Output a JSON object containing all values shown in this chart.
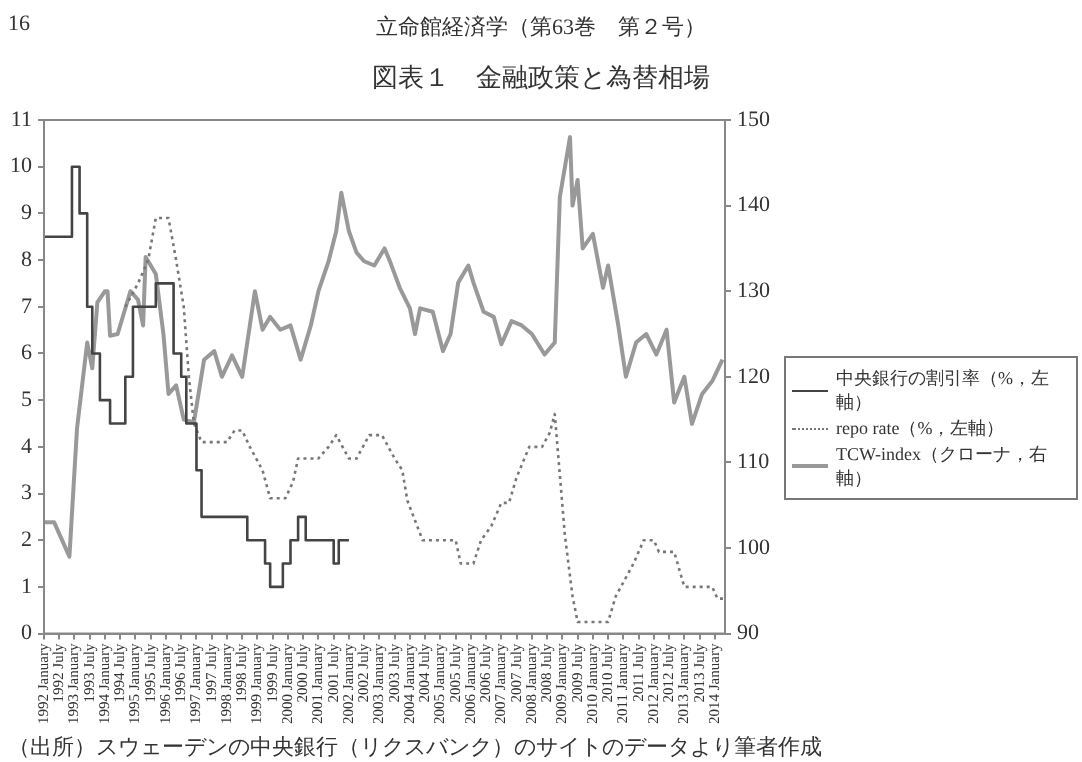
{
  "chart_data": {
    "type": "line",
    "title": "図表１　金融政策と為替相場",
    "annotations": [
      "16",
      "立命館経済学（第63巻　第２号）",
      "（出所）スウェーデンの中央銀行（リクスバンク）のサイトのデータより筆者作成"
    ],
    "xlim": [
      "1992-01",
      "2014-05"
    ],
    "xticks": [
      {
        "value": "1992-01",
        "label": "1992 January"
      },
      {
        "value": "1992-07",
        "label": "1992 July"
      },
      {
        "value": "1993-01",
        "label": "1993 January"
      },
      {
        "value": "1993-07",
        "label": "1993 July"
      },
      {
        "value": "1994-01",
        "label": "1994 January"
      },
      {
        "value": "1994-07",
        "label": "1994 July"
      },
      {
        "value": "1995-01",
        "label": "1995 January"
      },
      {
        "value": "1995-07",
        "label": "1995 July"
      },
      {
        "value": "1996-01",
        "label": "1996 January"
      },
      {
        "value": "1996-07",
        "label": "1996 July"
      },
      {
        "value": "1997-01",
        "label": "1997 January"
      },
      {
        "value": "1997-07",
        "label": "1997 July"
      },
      {
        "value": "1998-01",
        "label": "1998 January"
      },
      {
        "value": "1998-07",
        "label": "1998 July"
      },
      {
        "value": "1999-01",
        "label": "1999 January"
      },
      {
        "value": "1999-07",
        "label": "1999 July"
      },
      {
        "value": "2000-01",
        "label": "2000 January"
      },
      {
        "value": "2000-07",
        "label": "2000 July"
      },
      {
        "value": "2001-01",
        "label": "2001 January"
      },
      {
        "value": "2001-07",
        "label": "2001 July"
      },
      {
        "value": "2002-01",
        "label": "2002 January"
      },
      {
        "value": "2002-07",
        "label": "2002 July"
      },
      {
        "value": "2003-01",
        "label": "2003 January"
      },
      {
        "value": "2003-07",
        "label": "2003 July"
      },
      {
        "value": "2004-01",
        "label": "2004 January"
      },
      {
        "value": "2004-07",
        "label": "2004 July"
      },
      {
        "value": "2005-01",
        "label": "2005 January"
      },
      {
        "value": "2005-07",
        "label": "2005 July"
      },
      {
        "value": "2006-01",
        "label": "2006 January"
      },
      {
        "value": "2006-07",
        "label": "2006 July"
      },
      {
        "value": "2007-01",
        "label": "2007 January"
      },
      {
        "value": "2007-07",
        "label": "2007 July"
      },
      {
        "value": "2008-01",
        "label": "2008 January"
      },
      {
        "value": "2008-07",
        "label": "2008 July"
      },
      {
        "value": "2009-01",
        "label": "2009 January"
      },
      {
        "value": "2009-07",
        "label": "2009 July"
      },
      {
        "value": "2010-01",
        "label": "2010 January"
      },
      {
        "value": "2010-07",
        "label": "2010 July"
      },
      {
        "value": "2011-01",
        "label": "2011 January"
      },
      {
        "value": "2011-07",
        "label": "2011 July"
      },
      {
        "value": "2012-01",
        "label": "2012 January"
      },
      {
        "value": "2012-07",
        "label": "2012 July"
      },
      {
        "value": "2013-01",
        "label": "2013 January"
      },
      {
        "value": "2013-07",
        "label": "2013 July"
      },
      {
        "value": "2014-01",
        "label": "2014 January"
      }
    ],
    "ylim": [
      0,
      11
    ],
    "yticks": [
      0,
      1,
      2,
      3,
      4,
      5,
      6,
      7,
      8,
      9,
      10,
      11
    ],
    "y2lim": [
      90,
      150
    ],
    "y2ticks": [
      90,
      100,
      110,
      120,
      130,
      140,
      150
    ],
    "grid": false,
    "legend": "right",
    "series": [
      {
        "name": "中央銀行の割引率（%，左軸）",
        "type": "step",
        "color": "#444444",
        "line_style": "solid",
        "x": [
          "1992-01",
          "1992-12",
          "1993-03",
          "1993-06",
          "1993-08",
          "1993-11",
          "1994-03",
          "1994-09",
          "1994-12",
          "1995-09",
          "1996-04",
          "1996-07",
          "1996-09",
          "1997-01",
          "1997-03",
          "1998-09",
          "1999-04",
          "1999-06",
          "1999-11",
          "2000-02",
          "2000-05",
          "2000-08",
          "2001-07",
          "2001-09",
          "2002-01"
        ],
        "values": [
          8.5,
          10,
          9,
          7,
          6,
          5,
          4.5,
          5.5,
          7,
          7.5,
          6,
          5.5,
          4.5,
          3.5,
          2.5,
          2,
          1.5,
          1,
          1.5,
          2,
          2.5,
          2,
          1.5,
          2,
          2
        ]
      },
      {
        "name": "repo rate（%，左軸）",
        "type": "line",
        "color": "#777777",
        "line_style": "dotted",
        "x": [
          "1994-09",
          "1995-02",
          "1995-06",
          "1995-09",
          "1996-02",
          "1996-05",
          "1996-08",
          "1996-10",
          "1996-12",
          "1997-03",
          "1998-01",
          "1998-04",
          "1998-07",
          "1998-10",
          "1999-03",
          "1999-06",
          "1999-12",
          "2000-03",
          "2000-05",
          "2001-01",
          "2001-05",
          "2001-08",
          "2002-01",
          "2002-04",
          "2002-09",
          "2003-02",
          "2003-07",
          "2003-10",
          "2003-12",
          "2004-06",
          "2005-07",
          "2005-09",
          "2006-02",
          "2006-05",
          "2006-09",
          "2007-01",
          "2007-04",
          "2007-07",
          "2007-12",
          "2008-05",
          "2008-08",
          "2008-10",
          "2009-02",
          "2009-05",
          "2009-07",
          "2010-07",
          "2010-10",
          "2011-05",
          "2011-09",
          "2012-01",
          "2012-03",
          "2012-09",
          "2013-01",
          "2013-12",
          "2014-02",
          "2014-05"
        ],
        "values": [
          7,
          7.5,
          8,
          8.9,
          8.9,
          8,
          7,
          5.5,
          4.5,
          4.1,
          4.1,
          4.35,
          4.35,
          4,
          3.5,
          2.9,
          2.9,
          3.25,
          3.75,
          3.75,
          4,
          4.25,
          3.75,
          3.75,
          4.25,
          4.25,
          3.75,
          3.5,
          2.85,
          2,
          2,
          1.5,
          1.5,
          2,
          2.3,
          2.8,
          2.8,
          3.35,
          4,
          4,
          4.3,
          4.7,
          2.1,
          0.8,
          0.25,
          0.25,
          0.8,
          1.5,
          2,
          2,
          1.75,
          1.75,
          1,
          1,
          0.75,
          0.75
        ]
      },
      {
        "name": "TCW-index（クローナ，右軸）",
        "type": "line",
        "axis": "y2",
        "color": "#999999",
        "line_style": "solid",
        "x": [
          "1992-01",
          "1992-05",
          "1992-11",
          "1993-02",
          "1993-06",
          "1993-08",
          "1993-10",
          "1994-01",
          "1994-02",
          "1994-03",
          "1994-06",
          "1994-11",
          "1995-02",
          "1995-04",
          "1995-05",
          "1995-09",
          "1995-12",
          "1996-02",
          "1996-05",
          "1996-08",
          "1996-12",
          "1997-04",
          "1997-08",
          "1997-11",
          "1998-03",
          "1998-07",
          "1998-12",
          "1999-03",
          "1999-06",
          "1999-10",
          "2000-02",
          "2000-06",
          "2000-10",
          "2001-01",
          "2001-05",
          "2001-08",
          "2001-10",
          "2002-01",
          "2002-04",
          "2002-07",
          "2002-11",
          "2003-03",
          "2003-05",
          "2003-07",
          "2003-09",
          "2004-01",
          "2004-03",
          "2004-05",
          "2004-10",
          "2005-02",
          "2005-05",
          "2005-08",
          "2005-12",
          "2006-02",
          "2006-06",
          "2006-10",
          "2007-01",
          "2007-05",
          "2007-09",
          "2008-01",
          "2008-06",
          "2008-10",
          "2008-12",
          "2009-04",
          "2009-05",
          "2009-07",
          "2009-09",
          "2010-01",
          "2010-05",
          "2010-07",
          "2010-11",
          "2011-02",
          "2011-06",
          "2011-10",
          "2012-02",
          "2012-06",
          "2012-09",
          "2013-01",
          "2013-04",
          "2013-08",
          "2013-12",
          "2014-04"
        ],
        "values": [
          103,
          103,
          99,
          114,
          124,
          121,
          128.7,
          130,
          130,
          124.8,
          125,
          130,
          129,
          126,
          134,
          132,
          125,
          118,
          119,
          115,
          114.7,
          122,
          123,
          120,
          122.5,
          120,
          130,
          125.5,
          127,
          125.5,
          126,
          122,
          126,
          130,
          133.5,
          137,
          141.5,
          137,
          134.5,
          133.5,
          133,
          135,
          133.6,
          132,
          130.4,
          128,
          125,
          128,
          127.6,
          123,
          125,
          131,
          133,
          131,
          127.6,
          127,
          123.8,
          126.5,
          126,
          125,
          122.6,
          124,
          141,
          148,
          140,
          143,
          135,
          136.7,
          130.4,
          133,
          126,
          120,
          124,
          125,
          122.6,
          125.5,
          117,
          120,
          114.5,
          118,
          119.5,
          122
        ]
      }
    ]
  }
}
